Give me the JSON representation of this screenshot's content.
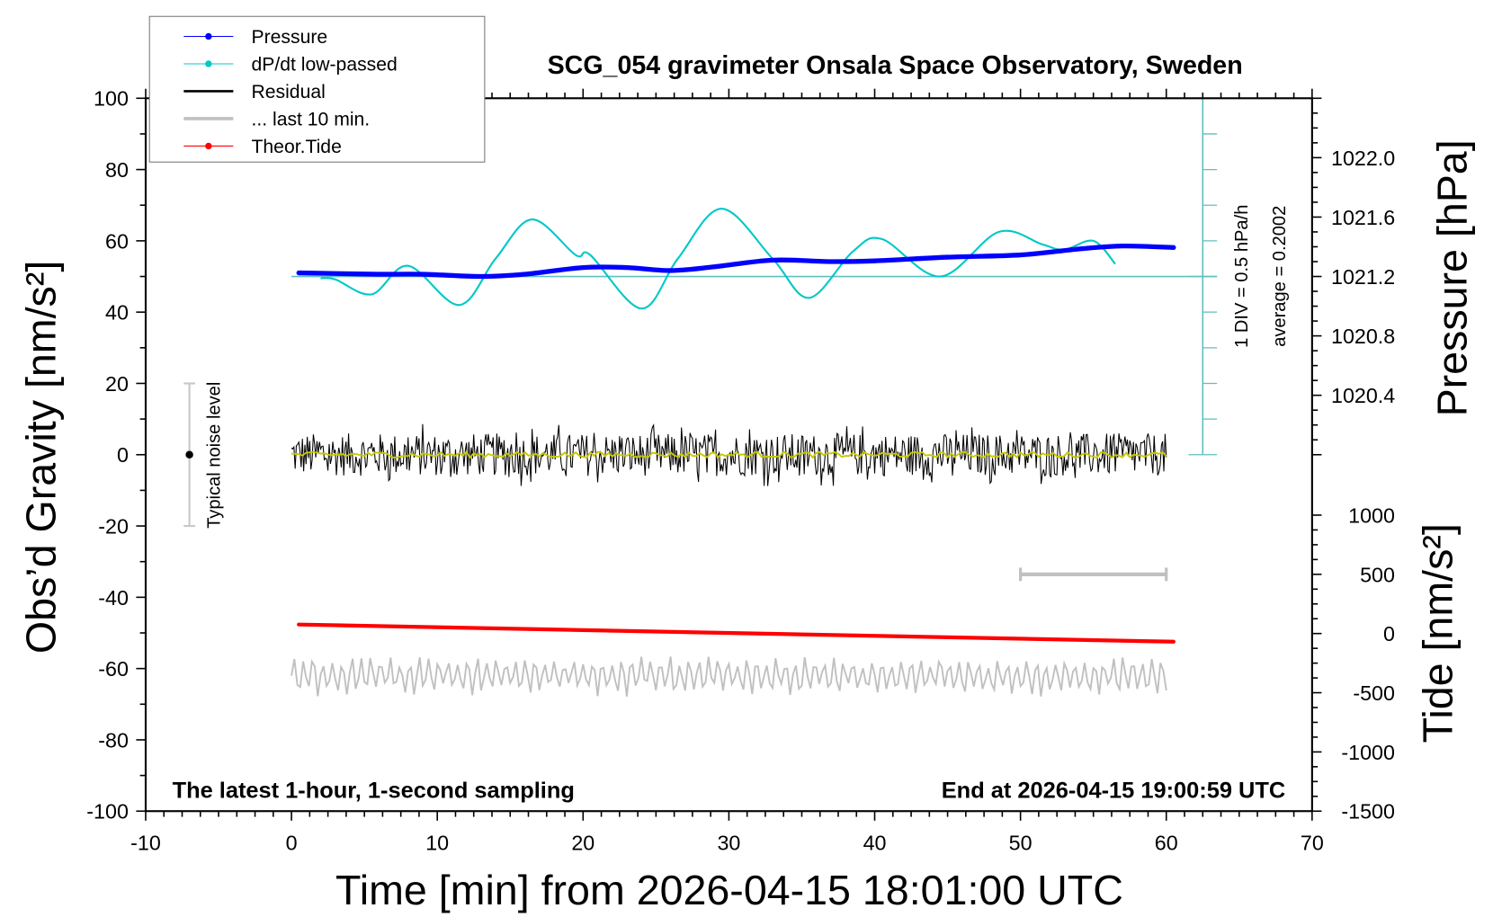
{
  "chart_data": {
    "type": "line",
    "title": "SCG_054 gravimeter Onsala Space Observatory, Sweden",
    "xlabel": "Time [min] from 2026-04-15 18:01:00 UTC",
    "ylabel": "Obs’d Gravity [nm/s²]",
    "ylabel_right_top": "Pressure [hPa]",
    "ylabel_right_bottom": "Tide [nm/s²]",
    "xlim": [
      -10,
      70
    ],
    "ylim": [
      -100,
      100
    ],
    "pressure_lim": [
      1020.0,
      1022.4
    ],
    "tide_lim": [
      -1500,
      1000
    ],
    "xticks": [
      -10,
      0,
      10,
      20,
      30,
      40,
      50,
      60,
      70
    ],
    "yticks": [
      -100,
      -80,
      -60,
      -40,
      -20,
      0,
      20,
      40,
      60,
      80,
      100
    ],
    "pressure_ticks": [
      "1020.4",
      "1020.8",
      "1021.2",
      "1021.6",
      "1022.0"
    ],
    "tide_ticks": [
      -1500,
      -1000,
      -500,
      0,
      500,
      1000
    ],
    "legend": {
      "placement": "top-left",
      "entries": [
        {
          "label": "Pressure",
          "color": "#0000ff",
          "marker": true
        },
        {
          "label": "dP/dt low-passed",
          "color": "#00c8c8",
          "marker": true
        },
        {
          "label": "Residual",
          "color": "#000000",
          "marker": false
        },
        {
          "label": "... last 10 min.",
          "color": "#c0c0c0",
          "marker": false
        },
        {
          "label": "Theor.Tide",
          "color": "#ff0000",
          "marker": true
        }
      ]
    },
    "series": {
      "pressure_hPa": {
        "t": [
          0.5,
          3,
          6,
          9,
          13,
          16,
          20,
          23,
          26,
          29,
          33,
          37,
          40,
          45,
          50,
          54,
          57,
          60.5
        ],
        "values": [
          1021.224,
          1021.22,
          1021.215,
          1021.215,
          1021.2,
          1021.215,
          1021.26,
          1021.26,
          1021.24,
          1021.265,
          1021.31,
          1021.3,
          1021.305,
          1021.33,
          1021.345,
          1021.385,
          1021.405,
          1021.395
        ]
      },
      "dpdt_hPa_per_h": {
        "t": [
          2,
          3,
          5.5,
          8,
          11.5,
          14,
          16.5,
          19.5,
          20.5,
          24,
          26.5,
          29.5,
          33,
          35.5,
          38.5,
          40.5,
          44.5,
          48.5,
          51.5,
          53,
          55,
          56.5
        ],
        "values": [
          0.175,
          0.16,
          -0.05,
          0.35,
          -0.2,
          0.45,
          1.0,
          0.5,
          0.5,
          -0.25,
          0.45,
          1.15,
          0.45,
          -0.1,
          0.55,
          0.725,
          0.2,
          0.825,
          0.65,
          0.575,
          0.7,
          0.375
        ]
      },
      "residual": {
        "t_range": [
          0,
          60
        ],
        "amplitude_nm_s2": 6,
        "smoothed_color": "#c8c800"
      },
      "last_10_min": {
        "t_range": [
          0,
          60
        ],
        "center_nm_s2": -62,
        "amplitude_nm_s2": 5,
        "marker_t_range": [
          50,
          60
        ],
        "marker_tide": 500
      },
      "theor_tide": {
        "t": [
          0.5,
          60.5
        ],
        "values": [
          76,
          -69
        ]
      }
    },
    "dpdt_axis": {
      "t": 62.5,
      "div_label": "1 DIV = 0.5 hPa/h",
      "average_label": "average = 0.2002",
      "div_hPa_per_h": 0.5,
      "average": 0.2002
    },
    "noise_level": {
      "t": -7,
      "range": [
        -20,
        20
      ],
      "label": "Typical noise level"
    },
    "footer_left": "The latest 1-hour, 1-second sampling",
    "footer_right": "End at 2026-04-15 19:00:59 UTC"
  }
}
